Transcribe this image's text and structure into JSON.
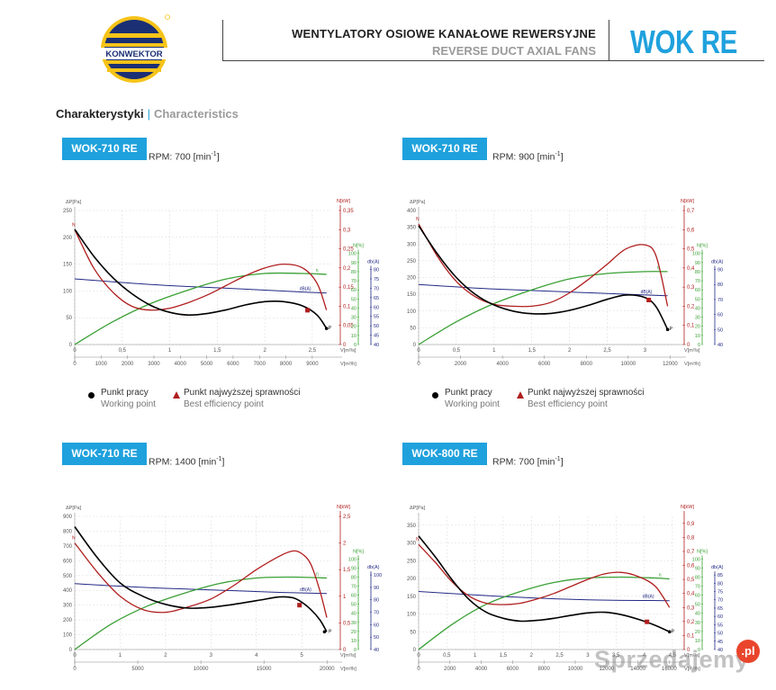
{
  "header": {
    "logo_text": "KONWEKTOR",
    "title_pl": "WENTYLATORY OSIOWE KANAŁOWE REWERSYJNE",
    "title_en": "REVERSE DUCT AXIAL FANS",
    "brand": "WOK RE"
  },
  "section": {
    "title_pl": "Charakterystyki",
    "separator": "|",
    "title_en": "Characteristics"
  },
  "legend": {
    "working_pl": "Punkt pracy",
    "working_en": "Working point",
    "best_pl": "Punkt najwyższej sprawności",
    "best_en": "Best efficiency point"
  },
  "colors": {
    "accent": "#1fa1dd",
    "pressure": "#000000",
    "power": "#b01e1e",
    "efficiency": "#3aa035",
    "noise": "#232a85",
    "grid": "#d8d8d8"
  },
  "watermark": {
    "text": "Sprzedajemy",
    "badge": ".pl"
  },
  "chart_data": [
    {
      "type": "line",
      "model": "WOK-710 RE",
      "rpm_label": "RPM: 700 [min",
      "rpm_sup": "-1",
      "rpm_close": "]",
      "x_top_ticks": [
        "0",
        "0,5",
        "1",
        "1,5",
        "2",
        "2,5"
      ],
      "x_top_unit": "V[m³/s]",
      "x_top_max": 2.7,
      "x_bottom_ticks": [
        "0",
        "1000",
        "2000",
        "3000",
        "4000",
        "5000",
        "6000",
        "7000",
        "8000",
        "9000"
      ],
      "x_bottom_unit": "V[m³/h]",
      "y_left_label": "ΔP[Pa]",
      "y_left_ticks": [
        "0",
        "50",
        "100",
        "150",
        "200",
        "250"
      ],
      "y_left_max": 250,
      "y_power_label": "N[kW]",
      "y_power_ticks": [
        "0",
        "0,05",
        "0,1",
        "0,15",
        "0,2",
        "0,25",
        "0,3",
        "0,35"
      ],
      "y_power_max": 0.35,
      "y_eff_label": "N[%]",
      "y_eff_ticks": [
        "0",
        "10",
        "20",
        "30",
        "40",
        "50",
        "60",
        "70",
        "80",
        "90",
        "100"
      ],
      "y_noise_label": "db(A)",
      "y_noise_ticks": [
        "40",
        "45",
        "50",
        "55",
        "60",
        "65",
        "70",
        "75",
        "80"
      ],
      "curve_labels": {
        "pressure": "P",
        "power": "N",
        "efficiency": "η",
        "noise": "dB(A)"
      },
      "series": [
        {
          "name": "pressure",
          "axis": "pressure",
          "x": [
            0,
            0.2,
            0.4,
            0.6,
            0.8,
            1.0,
            1.2,
            1.4,
            1.6,
            1.8,
            2.0,
            2.2,
            2.4,
            2.55,
            2.65
          ],
          "values": [
            215,
            165,
            125,
            95,
            73,
            60,
            55,
            58,
            65,
            74,
            80,
            80,
            72,
            55,
            30
          ]
        },
        {
          "name": "power",
          "axis": "power",
          "x": [
            0,
            0.2,
            0.4,
            0.6,
            0.8,
            1.0,
            1.2,
            1.4,
            1.6,
            1.8,
            2.0,
            2.2,
            2.4,
            2.55,
            2.65
          ],
          "values": [
            0.3,
            0.2,
            0.137,
            0.1,
            0.09,
            0.095,
            0.11,
            0.13,
            0.155,
            0.18,
            0.2,
            0.21,
            0.2,
            0.16,
            0.09
          ]
        },
        {
          "name": "efficiency",
          "axis": "efficiency",
          "x": [
            0,
            0.4,
            0.8,
            1.2,
            1.6,
            2.0,
            2.4,
            2.65
          ],
          "values": [
            0,
            25,
            45,
            60,
            72,
            78,
            78,
            77
          ]
        },
        {
          "name": "noise",
          "axis": "noise",
          "x": [
            0,
            0.8,
            1.6,
            2.4,
            2.65
          ],
          "values": [
            75,
            72,
            70,
            68,
            67.5
          ]
        }
      ],
      "best_point": {
        "x": 2.45,
        "pressure": 64
      },
      "working_point": {
        "x": 2.65,
        "pressure": 30
      }
    },
    {
      "type": "line",
      "model": "WOK-710 RE",
      "rpm_label": "RPM: 900 [min",
      "rpm_sup": "-1",
      "rpm_close": "]",
      "x_top_ticks": [
        "0",
        "0,5",
        "1",
        "1,5",
        "2",
        "2,5",
        "3"
      ],
      "x_top_unit": "V[m³/s]",
      "x_top_max": 3.4,
      "x_bottom_ticks": [
        "0",
        "2000",
        "4000",
        "6000",
        "8000",
        "10000",
        "12000"
      ],
      "x_bottom_unit": "V[m³/h]",
      "y_left_label": "ΔP[Pa]",
      "y_left_ticks": [
        "0",
        "50",
        "100",
        "150",
        "200",
        "250",
        "300",
        "350",
        "400"
      ],
      "y_left_max": 400,
      "y_power_label": "N[kW]",
      "y_power_ticks": [
        "0",
        "0,1",
        "0,2",
        "0,3",
        "0,4",
        "0,5",
        "0,6",
        "0,7"
      ],
      "y_power_max": 0.7,
      "y_eff_label": "N[%]",
      "y_eff_ticks": [
        "0",
        "10",
        "20",
        "30",
        "40",
        "50",
        "60",
        "70",
        "80",
        "90",
        "100"
      ],
      "y_noise_label": "db(A)",
      "y_noise_ticks": [
        "40",
        "50",
        "60",
        "70",
        "80",
        "90"
      ],
      "curve_labels": {
        "pressure": "P",
        "power": "N",
        "efficiency": "η",
        "noise": "dB(A)"
      },
      "series": [
        {
          "name": "pressure",
          "axis": "pressure",
          "x": [
            0,
            0.25,
            0.5,
            0.75,
            1.0,
            1.25,
            1.5,
            1.75,
            2.0,
            2.25,
            2.5,
            2.75,
            3.0,
            3.15,
            3.3
          ],
          "values": [
            355,
            270,
            200,
            150,
            118,
            100,
            92,
            93,
            102,
            117,
            135,
            148,
            140,
            112,
            45
          ]
        },
        {
          "name": "power",
          "axis": "power",
          "x": [
            0,
            0.25,
            0.5,
            0.75,
            1.0,
            1.25,
            1.5,
            1.75,
            2.0,
            2.25,
            2.5,
            2.75,
            3.0,
            3.15,
            3.3
          ],
          "values": [
            0.63,
            0.46,
            0.33,
            0.25,
            0.21,
            0.2,
            0.2,
            0.22,
            0.27,
            0.34,
            0.42,
            0.5,
            0.52,
            0.46,
            0.2
          ]
        },
        {
          "name": "efficiency",
          "axis": "efficiency",
          "x": [
            0,
            0.5,
            1.0,
            1.5,
            2.0,
            2.5,
            3.0,
            3.3
          ],
          "values": [
            0,
            25,
            45,
            60,
            72,
            78,
            80,
            80
          ]
        },
        {
          "name": "noise",
          "axis": "noise",
          "x": [
            0,
            1.0,
            2.0,
            3.0,
            3.3
          ],
          "values": [
            80,
            77,
            75,
            73,
            72.5
          ]
        }
      ],
      "best_point": {
        "x": 3.05,
        "pressure": 133
      },
      "working_point": {
        "x": 3.3,
        "pressure": 45
      }
    },
    {
      "type": "line",
      "model": "WOK-710 RE",
      "rpm_label": "RPM: 1400 [min",
      "rpm_sup": "-1",
      "rpm_close": "]",
      "x_top_ticks": [
        "0",
        "1",
        "2",
        "3",
        "4",
        "5"
      ],
      "x_top_unit": "V[m³/s]",
      "x_top_max": 5.65,
      "x_bottom_ticks": [
        "0",
        "5000",
        "10000",
        "15000",
        "20000"
      ],
      "x_bottom_unit": "V[m³/h]",
      "y_left_label": "ΔP[Pa]",
      "y_left_ticks": [
        "0",
        "100",
        "200",
        "300",
        "400",
        "500",
        "600",
        "700",
        "800",
        "900"
      ],
      "y_left_max": 900,
      "y_power_label": "N[kW]",
      "y_power_ticks": [
        "0",
        "0,5",
        "1",
        "1,5",
        "2",
        "2,5"
      ],
      "y_power_max": 2.5,
      "y_eff_label": "N[%]",
      "y_eff_ticks": [
        "0",
        "10",
        "20",
        "30",
        "40",
        "50",
        "60",
        "70",
        "80",
        "90",
        "100"
      ],
      "y_noise_label": "db(A)",
      "y_noise_ticks": [
        "40",
        "50",
        "60",
        "70",
        "80",
        "90",
        "100"
      ],
      "curve_labels": {
        "pressure": "P",
        "power": "N",
        "efficiency": "η",
        "noise": "dB(A)"
      },
      "series": [
        {
          "name": "pressure",
          "axis": "pressure",
          "x": [
            0,
            0.5,
            1.0,
            1.5,
            2.0,
            2.5,
            3.0,
            3.5,
            4.0,
            4.5,
            4.8,
            5.0,
            5.2,
            5.4,
            5.55
          ],
          "values": [
            830,
            620,
            450,
            360,
            305,
            280,
            285,
            305,
            330,
            355,
            350,
            320,
            270,
            200,
            120
          ]
        },
        {
          "name": "power",
          "axis": "power",
          "x": [
            0,
            0.5,
            1.0,
            1.5,
            2.0,
            2.5,
            3.0,
            3.5,
            4.0,
            4.5,
            4.8,
            5.0,
            5.2,
            5.4,
            5.55
          ],
          "values": [
            2.0,
            1.45,
            1.0,
            0.75,
            0.7,
            0.8,
            0.95,
            1.2,
            1.5,
            1.75,
            1.85,
            1.8,
            1.6,
            1.1,
            0.6
          ]
        },
        {
          "name": "efficiency",
          "axis": "efficiency",
          "x": [
            0,
            0.8,
            1.6,
            2.4,
            3.2,
            4.0,
            4.8,
            5.55
          ],
          "values": [
            0,
            28,
            48,
            62,
            73,
            79,
            80,
            79
          ]
        },
        {
          "name": "noise",
          "axis": "noise",
          "x": [
            0,
            1.5,
            3.0,
            4.5,
            5.55
          ],
          "values": [
            93,
            90,
            88,
            86,
            85
          ]
        }
      ],
      "best_point": {
        "x": 4.95,
        "pressure": 300
      },
      "working_point": {
        "x": 5.5,
        "pressure": 120
      }
    },
    {
      "type": "line",
      "model": "WOK-800 RE",
      "rpm_label": "RPM: 700 [min",
      "rpm_sup": "-1",
      "rpm_close": "]",
      "x_top_ticks": [
        "0",
        "0,5",
        "1",
        "1,5",
        "2",
        "2,5",
        "3",
        "3,5",
        "4",
        "4,5"
      ],
      "x_top_unit": "V[m³/s]",
      "x_top_max": 4.55,
      "x_bottom_ticks": [
        "0",
        "2000",
        "4000",
        "6000",
        "8000",
        "10000",
        "12000",
        "14000",
        "16000"
      ],
      "x_bottom_unit": "V[m³/h]",
      "y_left_label": "ΔP[Pa]",
      "y_left_ticks": [
        "0",
        "50",
        "100",
        "150",
        "200",
        "250",
        "300",
        "350"
      ],
      "y_left_max": 375,
      "y_power_label": "N[kW]",
      "y_power_ticks": [
        "0",
        "0,1",
        "0,2",
        "0,3",
        "0,4",
        "0,5",
        "0,6",
        "0,7",
        "0,8",
        "0,9"
      ],
      "y_power_max": 0.95,
      "y_eff_label": "N[%]",
      "y_eff_ticks": [
        "0",
        "10",
        "20",
        "30",
        "40",
        "50",
        "60",
        "70",
        "80",
        "90",
        "100"
      ],
      "y_noise_label": "db(A)",
      "y_noise_ticks": [
        "40",
        "45",
        "50",
        "55",
        "60",
        "65",
        "70",
        "75",
        "80",
        "85"
      ],
      "curve_labels": {
        "pressure": "P",
        "power": "N",
        "efficiency": "η",
        "noise": "dB(A)"
      },
      "series": [
        {
          "name": "pressure",
          "axis": "pressure",
          "x": [
            0,
            0.3,
            0.6,
            0.9,
            1.2,
            1.5,
            1.8,
            2.1,
            2.4,
            2.7,
            3.0,
            3.3,
            3.6,
            3.9,
            4.2,
            4.45
          ],
          "values": [
            320,
            260,
            195,
            140,
            105,
            88,
            80,
            82,
            88,
            96,
            103,
            105,
            98,
            85,
            68,
            50
          ]
        },
        {
          "name": "power",
          "axis": "power",
          "x": [
            0,
            0.3,
            0.6,
            0.9,
            1.2,
            1.5,
            1.8,
            2.1,
            2.4,
            2.7,
            3.0,
            3.3,
            3.6,
            3.9,
            4.2,
            4.45
          ],
          "values": [
            0.75,
            0.62,
            0.48,
            0.38,
            0.33,
            0.32,
            0.33,
            0.36,
            0.4,
            0.45,
            0.5,
            0.54,
            0.55,
            0.52,
            0.45,
            0.3
          ]
        },
        {
          "name": "efficiency",
          "axis": "efficiency",
          "x": [
            0,
            0.6,
            1.2,
            1.8,
            2.4,
            3.0,
            3.6,
            4.2,
            4.45
          ],
          "values": [
            0,
            28,
            50,
            64,
            74,
            79,
            80,
            79,
            78
          ]
        },
        {
          "name": "noise",
          "axis": "noise",
          "x": [
            0,
            1.5,
            3.0,
            4.45
          ],
          "values": [
            75,
            72,
            70,
            69.5
          ]
        }
      ],
      "best_point": {
        "x": 4.05,
        "pressure": 78
      },
      "working_point": {
        "x": 4.45,
        "pressure": 50
      }
    }
  ]
}
